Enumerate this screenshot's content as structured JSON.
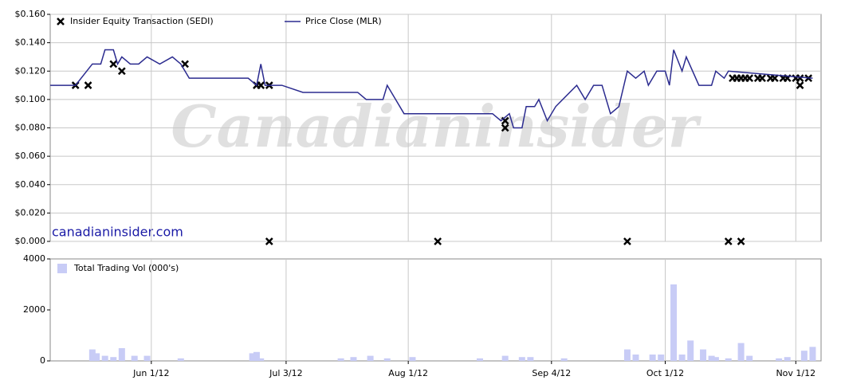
{
  "chart_data": [
    {
      "type": "line",
      "watermark": "Canadianinsider",
      "source": "canadianinsider.com",
      "xlim": [
        129,
        312
      ],
      "ylim": [
        0,
        0.16
      ],
      "yticks": [
        {
          "value": 0,
          "label": "$0.000"
        },
        {
          "value": 0.02,
          "label": "$0.020"
        },
        {
          "value": 0.04,
          "label": "$0.040"
        },
        {
          "value": 0.06,
          "label": "$0.060"
        },
        {
          "value": 0.08,
          "label": "$0.080"
        },
        {
          "value": 0.1,
          "label": "$0.100"
        },
        {
          "value": 0.12,
          "label": "$0.120"
        },
        {
          "value": 0.14,
          "label": "$0.140"
        },
        {
          "value": 0.16,
          "label": "$0.160"
        }
      ],
      "grid": true,
      "series": [
        {
          "name": "Insider Equity Transaction (SEDI)",
          "type": "scatter",
          "color": "#000000",
          "x": [
            135,
            138,
            144,
            146,
            161,
            178,
            179,
            181,
            181,
            221,
            237,
            237,
            266,
            290,
            293,
            291,
            292,
            293,
            294,
            295,
            297,
            298,
            300,
            301,
            303,
            304,
            306,
            307,
            309,
            307
          ],
          "values": [
            0.11,
            0.11,
            0.125,
            0.12,
            0.125,
            0.11,
            0.11,
            0.11,
            0,
            0,
            0.085,
            0.08,
            0,
            0,
            0,
            0.115,
            0.115,
            0.115,
            0.115,
            0.115,
            0.115,
            0.115,
            0.115,
            0.115,
            0.115,
            0.115,
            0.115,
            0.115,
            0.115,
            0.11
          ]
        },
        {
          "name": "Price Close (MLR)",
          "type": "line",
          "color": "#2b2b8f",
          "x": [
            129,
            135,
            139,
            141,
            142,
            144,
            145,
            146,
            148,
            150,
            152,
            155,
            158,
            160,
            162,
            176,
            178,
            179,
            180,
            184,
            189,
            202,
            204,
            208,
            209,
            211,
            213,
            234,
            236,
            238,
            239,
            241,
            242,
            244,
            245,
            247,
            249,
            254,
            256,
            258,
            260,
            262,
            264,
            266,
            268,
            270,
            271,
            273,
            275,
            276,
            277,
            279,
            280,
            283,
            286,
            287,
            289,
            290,
            310
          ],
          "values": [
            0.11,
            0.11,
            0.125,
            0.125,
            0.135,
            0.135,
            0.125,
            0.13,
            0.125,
            0.125,
            0.13,
            0.125,
            0.13,
            0.125,
            0.115,
            0.115,
            0.11,
            0.125,
            0.11,
            0.11,
            0.105,
            0.105,
            0.1,
            0.1,
            0.11,
            0.1,
            0.09,
            0.09,
            0.085,
            0.09,
            0.08,
            0.08,
            0.095,
            0.095,
            0.1,
            0.085,
            0.095,
            0.11,
            0.1,
            0.11,
            0.11,
            0.09,
            0.095,
            0.12,
            0.115,
            0.12,
            0.11,
            0.12,
            0.12,
            0.11,
            0.135,
            0.12,
            0.13,
            0.11,
            0.11,
            0.12,
            0.115,
            0.12,
            0.115
          ]
        }
      ]
    },
    {
      "type": "bar",
      "xlim": [
        129,
        312
      ],
      "ylim": [
        0,
        4000
      ],
      "yticks": [
        0,
        2000,
        4000
      ],
      "xticks": [
        {
          "value": 153,
          "label": "Jun 1/12"
        },
        {
          "value": 185,
          "label": "Jul 3/12"
        },
        {
          "value": 214,
          "label": "Aug 1/12"
        },
        {
          "value": 248,
          "label": "Sep 4/12"
        },
        {
          "value": 275,
          "label": "Oct 1/12"
        },
        {
          "value": 306,
          "label": "Nov 1/12"
        }
      ],
      "series": [
        {
          "name": "Total Trading Vol (000's)",
          "color": "#c8ccf6",
          "x": [
            139,
            140,
            142,
            144,
            146,
            149,
            152,
            160,
            177,
            178,
            179,
            198,
            201,
            205,
            209,
            215,
            231,
            237,
            241,
            243,
            251,
            266,
            268,
            272,
            274,
            277,
            279,
            281,
            284,
            286,
            287,
            290,
            293,
            295,
            302,
            304,
            308,
            310
          ],
          "values": [
            450,
            300,
            200,
            150,
            500,
            200,
            200,
            100,
            300,
            350,
            100,
            100,
            150,
            200,
            100,
            150,
            100,
            200,
            150,
            150,
            100,
            450,
            250,
            250,
            250,
            3000,
            250,
            800,
            450,
            200,
            150,
            100,
            700,
            200,
            100,
            150,
            400,
            550
          ]
        }
      ]
    }
  ]
}
